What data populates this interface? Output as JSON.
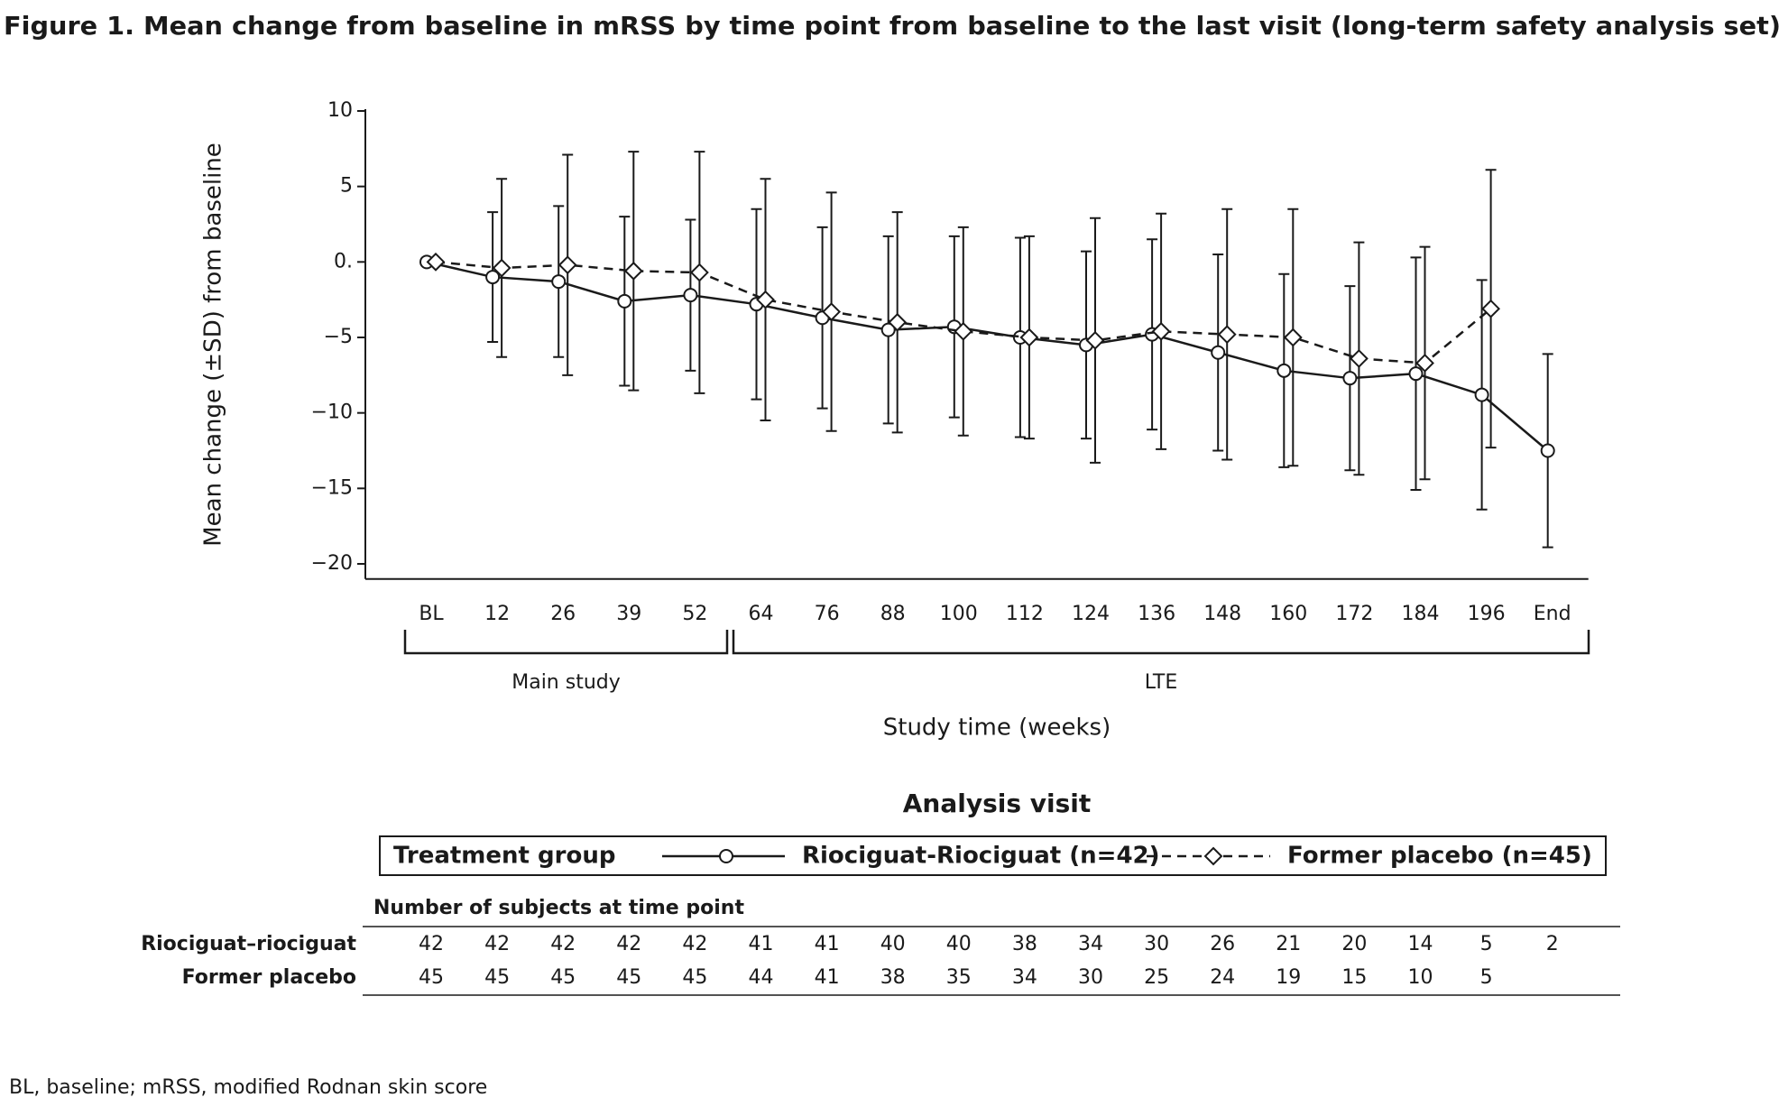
{
  "chart_data": {
    "type": "line",
    "title": "Figure 1. Mean change from baseline in mRSS by time point from baseline to the last visit (long-term safety analysis set)",
    "ylabel": "Mean change (±SD) from baseline",
    "xlabel": "Study time (weeks)",
    "categories": [
      "BL",
      "12",
      "26",
      "39",
      "52",
      "64",
      "76",
      "88",
      "100",
      "112",
      "124",
      "136",
      "148",
      "160",
      "172",
      "184",
      "196",
      "End"
    ],
    "groups": [
      "Main study",
      "LTE"
    ],
    "ylim": [
      -21,
      10
    ],
    "yticks": [
      10,
      5,
      {
        "value": 0,
        "label": "0."
      },
      {
        "value": -5,
        "label": "−5"
      },
      {
        "value": -10,
        "label": "−10"
      },
      {
        "value": -15,
        "label": "−15"
      },
      {
        "value": -20,
        "label": "−20"
      }
    ],
    "series": [
      {
        "name": "Riociguat-Riociguat (n=42)",
        "color": "#1a1a1a",
        "marker": "circle",
        "dash": false,
        "values": [
          0,
          -1.0,
          -1.3,
          -2.6,
          -2.2,
          -2.8,
          -3.7,
          -4.5,
          -4.3,
          -5.0,
          -5.5,
          -4.8,
          -6.0,
          -7.2,
          -7.7,
          -7.4,
          -8.8,
          -12.5
        ],
        "errors": [
          0,
          4.3,
          5.0,
          5.6,
          5.0,
          6.3,
          6.0,
          6.2,
          6.0,
          6.6,
          6.2,
          6.3,
          6.5,
          6.4,
          6.1,
          7.7,
          7.6,
          6.4
        ]
      },
      {
        "name": "Former placebo (n=45)",
        "color": "#1a1a1a",
        "marker": "diamond",
        "dash": true,
        "values": [
          0,
          -0.4,
          -0.2,
          -0.6,
          -0.7,
          -2.5,
          -3.3,
          -4.0,
          -4.6,
          -5.0,
          -5.2,
          -4.6,
          -4.8,
          -5.0,
          -6.4,
          -6.7,
          -3.1,
          null
        ],
        "errors": [
          0,
          5.9,
          7.3,
          7.9,
          8.0,
          8.0,
          7.9,
          7.3,
          6.9,
          6.7,
          8.1,
          7.8,
          8.3,
          8.5,
          7.7,
          7.7,
          9.2,
          null
        ]
      }
    ],
    "legend": {
      "title": "Analysis visit",
      "label": "Treatment group"
    },
    "table": {
      "title": "Number of subjects at time point",
      "rows": [
        {
          "label": "Riociguat–riociguat",
          "values": [
            42,
            42,
            42,
            42,
            42,
            41,
            41,
            40,
            40,
            38,
            34,
            30,
            26,
            21,
            20,
            14,
            5,
            2
          ]
        },
        {
          "label": "Former placebo",
          "values": [
            45,
            45,
            45,
            45,
            45,
            44,
            41,
            38,
            35,
            34,
            30,
            25,
            24,
            19,
            15,
            10,
            5,
            null
          ]
        }
      ]
    },
    "footnote": "BL, baseline; mRSS, modified Rodnan skin score"
  }
}
